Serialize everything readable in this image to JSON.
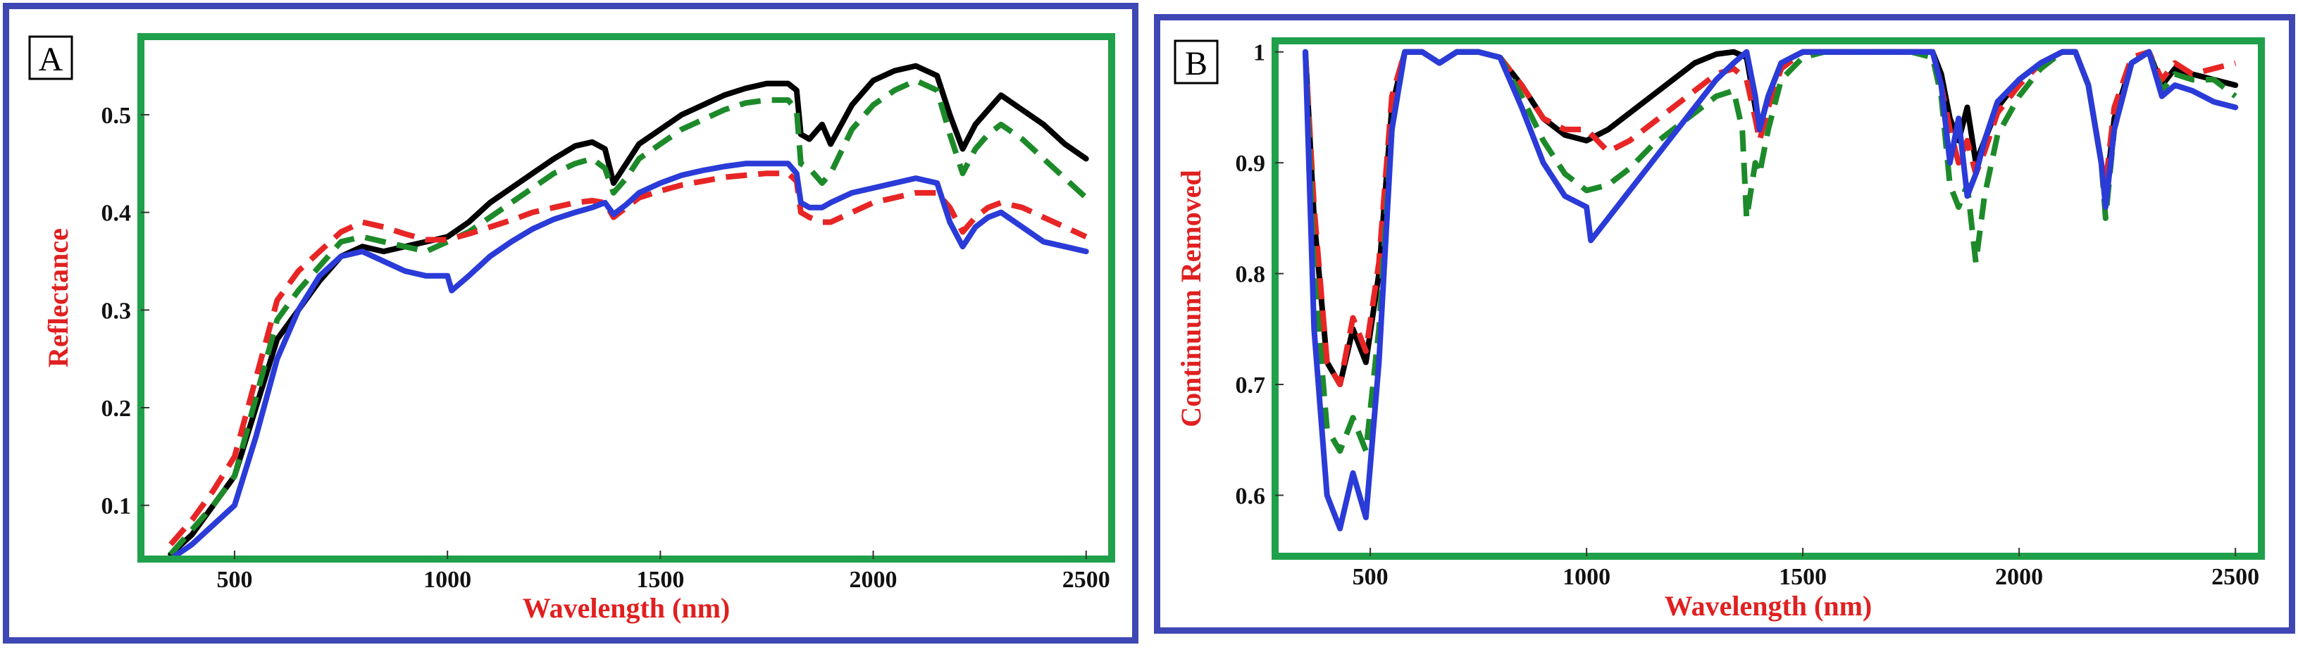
{
  "chart_data": [
    {
      "type": "line",
      "panel_label": "A",
      "xlabel": "Wavelength (nm)",
      "ylabel": "Reflectance",
      "xlim": [
        280,
        2560
      ],
      "ylim": [
        0.045,
        0.58
      ],
      "xticks": [
        500,
        1000,
        1500,
        2000,
        2500
      ],
      "yticks": [
        0.1,
        0.2,
        0.3,
        0.4,
        0.5
      ],
      "ytick_labels": [
        "0.1",
        "0.2",
        "0.3",
        "0.4",
        "0.5"
      ],
      "frame_color": "#1fa04a",
      "series": [
        {
          "name": "black",
          "color": "#000000",
          "dash": "solid",
          "x": [
            350,
            400,
            450,
            500,
            550,
            600,
            650,
            700,
            750,
            800,
            850,
            900,
            950,
            1000,
            1050,
            1100,
            1150,
            1200,
            1250,
            1300,
            1340,
            1370,
            1390,
            1420,
            1450,
            1500,
            1550,
            1600,
            1650,
            1700,
            1750,
            1800,
            1820,
            1830,
            1850,
            1880,
            1900,
            1950,
            2000,
            2050,
            2100,
            2150,
            2180,
            2210,
            2240,
            2270,
            2300,
            2350,
            2400,
            2450,
            2500
          ],
          "y": [
            0.05,
            0.07,
            0.1,
            0.13,
            0.2,
            0.27,
            0.3,
            0.33,
            0.355,
            0.365,
            0.36,
            0.365,
            0.37,
            0.375,
            0.39,
            0.41,
            0.425,
            0.44,
            0.455,
            0.468,
            0.472,
            0.465,
            0.43,
            0.45,
            0.47,
            0.485,
            0.5,
            0.51,
            0.52,
            0.527,
            0.532,
            0.532,
            0.525,
            0.48,
            0.475,
            0.49,
            0.47,
            0.51,
            0.535,
            0.545,
            0.55,
            0.54,
            0.5,
            0.465,
            0.49,
            0.505,
            0.52,
            0.505,
            0.49,
            0.47,
            0.455
          ]
        },
        {
          "name": "green",
          "color": "#1d8a2a",
          "dash": "dashed",
          "x": [
            350,
            400,
            450,
            500,
            550,
            600,
            650,
            700,
            750,
            800,
            850,
            900,
            950,
            1000,
            1050,
            1100,
            1150,
            1200,
            1250,
            1300,
            1340,
            1370,
            1390,
            1420,
            1450,
            1500,
            1550,
            1600,
            1650,
            1700,
            1750,
            1800,
            1820,
            1830,
            1850,
            1880,
            1900,
            1950,
            2000,
            2050,
            2100,
            2150,
            2180,
            2210,
            2240,
            2270,
            2300,
            2350,
            2400,
            2450,
            2500
          ],
          "y": [
            0.05,
            0.075,
            0.1,
            0.13,
            0.21,
            0.29,
            0.32,
            0.345,
            0.37,
            0.375,
            0.37,
            0.365,
            0.36,
            0.37,
            0.38,
            0.395,
            0.41,
            0.425,
            0.44,
            0.45,
            0.455,
            0.445,
            0.42,
            0.435,
            0.455,
            0.47,
            0.485,
            0.495,
            0.505,
            0.512,
            0.515,
            0.515,
            0.505,
            0.45,
            0.445,
            0.43,
            0.44,
            0.485,
            0.51,
            0.525,
            0.535,
            0.525,
            0.48,
            0.44,
            0.465,
            0.48,
            0.49,
            0.475,
            0.455,
            0.435,
            0.415
          ]
        },
        {
          "name": "red",
          "color": "#e82525",
          "dash": "dashed",
          "x": [
            350,
            400,
            450,
            500,
            550,
            600,
            650,
            700,
            750,
            800,
            850,
            900,
            950,
            1000,
            1050,
            1100,
            1150,
            1200,
            1250,
            1300,
            1340,
            1370,
            1390,
            1420,
            1450,
            1500,
            1550,
            1600,
            1650,
            1700,
            1750,
            1800,
            1820,
            1830,
            1850,
            1880,
            1900,
            1950,
            2000,
            2050,
            2100,
            2150,
            2180,
            2210,
            2240,
            2270,
            2300,
            2350,
            2400,
            2450,
            2500
          ],
          "y": [
            0.06,
            0.085,
            0.115,
            0.15,
            0.23,
            0.31,
            0.34,
            0.36,
            0.38,
            0.39,
            0.385,
            0.378,
            0.372,
            0.372,
            0.378,
            0.385,
            0.392,
            0.4,
            0.405,
            0.41,
            0.412,
            0.41,
            0.395,
            0.405,
            0.415,
            0.422,
            0.428,
            0.432,
            0.436,
            0.438,
            0.44,
            0.44,
            0.432,
            0.4,
            0.395,
            0.39,
            0.39,
            0.4,
            0.41,
            0.415,
            0.42,
            0.42,
            0.405,
            0.38,
            0.395,
            0.405,
            0.41,
            0.405,
            0.395,
            0.385,
            0.375
          ]
        },
        {
          "name": "blue",
          "color": "#2a3bd8",
          "dash": "solid",
          "x": [
            350,
            400,
            450,
            500,
            550,
            600,
            650,
            700,
            750,
            800,
            850,
            900,
            950,
            1000,
            1010,
            1050,
            1100,
            1150,
            1200,
            1250,
            1300,
            1340,
            1370,
            1390,
            1420,
            1450,
            1500,
            1550,
            1600,
            1650,
            1700,
            1750,
            1800,
            1820,
            1830,
            1850,
            1880,
            1900,
            1950,
            2000,
            2050,
            2100,
            2150,
            2180,
            2210,
            2240,
            2270,
            2300,
            2350,
            2400,
            2450,
            2500
          ],
          "y": [
            0.045,
            0.06,
            0.08,
            0.1,
            0.17,
            0.25,
            0.3,
            0.335,
            0.355,
            0.36,
            0.35,
            0.34,
            0.335,
            0.335,
            0.32,
            0.335,
            0.355,
            0.37,
            0.383,
            0.393,
            0.4,
            0.405,
            0.41,
            0.398,
            0.408,
            0.42,
            0.43,
            0.438,
            0.443,
            0.447,
            0.45,
            0.45,
            0.45,
            0.44,
            0.41,
            0.405,
            0.405,
            0.41,
            0.42,
            0.425,
            0.43,
            0.435,
            0.43,
            0.39,
            0.365,
            0.385,
            0.395,
            0.4,
            0.385,
            0.37,
            0.365,
            0.36
          ]
        }
      ]
    },
    {
      "type": "line",
      "panel_label": "B",
      "xlabel": "Wavelength (nm)",
      "ylabel": "Continuum Removed",
      "xlim": [
        280,
        2560
      ],
      "ylim": [
        0.545,
        1.01
      ],
      "xticks": [
        500,
        1000,
        1500,
        2000,
        2500
      ],
      "yticks": [
        0.6,
        0.7,
        0.8,
        0.9,
        1.0
      ],
      "ytick_labels": [
        "0.6",
        "0.7",
        "0.8",
        "0.9",
        "1"
      ],
      "frame_color": "#1fa04a",
      "series": [
        {
          "name": "black",
          "color": "#000000",
          "dash": "solid",
          "x": [
            350,
            370,
            400,
            430,
            460,
            490,
            520,
            550,
            580,
            620,
            660,
            700,
            750,
            800,
            850,
            900,
            950,
            1000,
            1050,
            1100,
            1150,
            1200,
            1250,
            1300,
            1340,
            1370,
            1390,
            1400,
            1420,
            1450,
            1500,
            1550,
            1600,
            1650,
            1700,
            1750,
            1800,
            1820,
            1840,
            1860,
            1880,
            1900,
            1920,
            1950,
            2000,
            2050,
            2100,
            2130,
            2160,
            2190,
            2200,
            2220,
            2260,
            2300,
            2330,
            2360,
            2400,
            2450,
            2500
          ],
          "y": [
            1.0,
            0.85,
            0.72,
            0.7,
            0.75,
            0.72,
            0.8,
            0.95,
            1.0,
            1.0,
            0.99,
            1.0,
            1.0,
            0.995,
            0.97,
            0.94,
            0.925,
            0.92,
            0.93,
            0.945,
            0.96,
            0.975,
            0.99,
            0.998,
            1.0,
            0.995,
            0.95,
            0.93,
            0.96,
            0.99,
            1.0,
            1.0,
            1.0,
            1.0,
            1.0,
            1.0,
            1.0,
            0.98,
            0.94,
            0.92,
            0.95,
            0.9,
            0.92,
            0.95,
            0.975,
            0.99,
            1.0,
            1.0,
            0.97,
            0.9,
            0.87,
            0.94,
            0.99,
            1.0,
            0.97,
            0.985,
            0.98,
            0.975,
            0.97
          ]
        },
        {
          "name": "red",
          "color": "#e82525",
          "dash": "dashed",
          "x": [
            350,
            370,
            400,
            430,
            460,
            490,
            520,
            550,
            580,
            620,
            660,
            700,
            750,
            800,
            850,
            900,
            950,
            1000,
            1050,
            1100,
            1150,
            1200,
            1250,
            1300,
            1340,
            1370,
            1390,
            1400,
            1420,
            1450,
            1500,
            1550,
            1600,
            1650,
            1700,
            1750,
            1800,
            1820,
            1840,
            1860,
            1880,
            1900,
            1920,
            1950,
            2000,
            2050,
            2100,
            2130,
            2160,
            2190,
            2200,
            2220,
            2260,
            2300,
            2330,
            2360,
            2400,
            2450,
            2500
          ],
          "y": [
            1.0,
            0.86,
            0.72,
            0.7,
            0.76,
            0.73,
            0.81,
            0.96,
            1.0,
            1.0,
            0.99,
            1.0,
            1.0,
            0.995,
            0.97,
            0.94,
            0.93,
            0.93,
            0.91,
            0.92,
            0.935,
            0.95,
            0.965,
            0.98,
            0.985,
            0.975,
            0.94,
            0.92,
            0.95,
            0.985,
            1.0,
            1.0,
            1.0,
            1.0,
            1.0,
            1.0,
            1.0,
            0.97,
            0.93,
            0.9,
            0.92,
            0.89,
            0.91,
            0.945,
            0.97,
            0.99,
            1.0,
            1.0,
            0.97,
            0.9,
            0.88,
            0.95,
            0.995,
            1.0,
            0.975,
            0.99,
            0.98,
            0.985,
            0.99
          ]
        },
        {
          "name": "green",
          "color": "#1d8a2a",
          "dash": "dashed",
          "x": [
            350,
            370,
            400,
            430,
            460,
            490,
            520,
            550,
            580,
            620,
            660,
            700,
            750,
            800,
            850,
            900,
            950,
            1000,
            1050,
            1100,
            1150,
            1200,
            1250,
            1300,
            1340,
            1360,
            1370,
            1390,
            1400,
            1420,
            1450,
            1500,
            1550,
            1600,
            1650,
            1700,
            1750,
            1800,
            1820,
            1840,
            1860,
            1880,
            1900,
            1920,
            1950,
            2000,
            2050,
            2100,
            2130,
            2160,
            2190,
            2200,
            2220,
            2260,
            2300,
            2330,
            2360,
            2400,
            2450,
            2500
          ],
          "y": [
            1.0,
            0.8,
            0.66,
            0.64,
            0.67,
            0.64,
            0.75,
            0.93,
            1.0,
            1.0,
            0.99,
            1.0,
            1.0,
            0.995,
            0.96,
            0.92,
            0.89,
            0.875,
            0.88,
            0.895,
            0.915,
            0.93,
            0.945,
            0.96,
            0.965,
            0.93,
            0.85,
            0.9,
            0.89,
            0.93,
            0.975,
            0.995,
            1.0,
            1.0,
            1.0,
            1.0,
            1.0,
            0.995,
            0.96,
            0.88,
            0.86,
            0.88,
            0.81,
            0.87,
            0.925,
            0.96,
            0.985,
            1.0,
            1.0,
            0.97,
            0.9,
            0.85,
            0.93,
            0.99,
            1.0,
            0.965,
            0.98,
            0.975,
            0.975,
            0.96
          ]
        },
        {
          "name": "blue",
          "color": "#2a3bd8",
          "dash": "solid",
          "x": [
            350,
            370,
            400,
            430,
            460,
            490,
            520,
            550,
            580,
            620,
            660,
            700,
            750,
            800,
            850,
            900,
            950,
            1000,
            1010,
            1050,
            1100,
            1150,
            1200,
            1250,
            1300,
            1340,
            1370,
            1390,
            1400,
            1420,
            1450,
            1500,
            1550,
            1600,
            1650,
            1700,
            1750,
            1800,
            1820,
            1840,
            1860,
            1880,
            1900,
            1920,
            1950,
            2000,
            2050,
            2100,
            2130,
            2160,
            2190,
            2200,
            2220,
            2260,
            2300,
            2330,
            2360,
            2400,
            2450,
            2500
          ],
          "y": [
            1.0,
            0.75,
            0.6,
            0.57,
            0.62,
            0.58,
            0.72,
            0.93,
            1.0,
            1.0,
            0.99,
            1.0,
            1.0,
            0.995,
            0.95,
            0.9,
            0.87,
            0.86,
            0.83,
            0.85,
            0.875,
            0.9,
            0.925,
            0.95,
            0.975,
            0.99,
            1.0,
            0.96,
            0.93,
            0.96,
            0.99,
            1.0,
            1.0,
            1.0,
            1.0,
            1.0,
            1.0,
            1.0,
            0.97,
            0.9,
            0.94,
            0.87,
            0.89,
            0.92,
            0.955,
            0.975,
            0.99,
            1.0,
            1.0,
            0.97,
            0.9,
            0.86,
            0.93,
            0.99,
            1.0,
            0.96,
            0.97,
            0.965,
            0.955,
            0.95
          ]
        }
      ]
    }
  ]
}
